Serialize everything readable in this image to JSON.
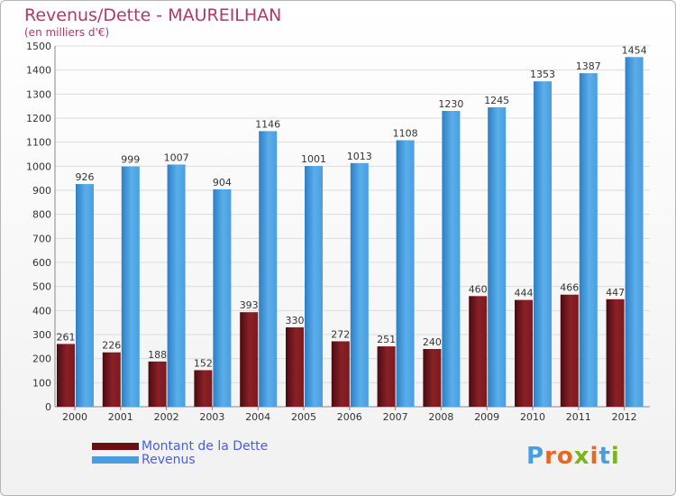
{
  "title": "Revenus/Dette - MAUREILHAN",
  "subtitle": "(en milliers d'€)",
  "colors": {
    "title": "#b1386a",
    "debt": "#7a1a1e",
    "revenue": "#4a9ee0",
    "legend_text": "#4a5fd8"
  },
  "logo": "Proxiti",
  "chart_data": {
    "type": "bar",
    "categories": [
      "2000",
      "2001",
      "2002",
      "2003",
      "2004",
      "2005",
      "2006",
      "2007",
      "2008",
      "2009",
      "2010",
      "2011",
      "2012"
    ],
    "series": [
      {
        "name": "Montant de la Dette",
        "values": [
          261,
          226,
          188,
          152,
          393,
          330,
          272,
          251,
          240,
          460,
          444,
          466,
          447
        ]
      },
      {
        "name": "Revenus",
        "values": [
          926,
          999,
          1007,
          904,
          1146,
          1001,
          1013,
          1108,
          1230,
          1245,
          1353,
          1387,
          1454
        ]
      }
    ],
    "ylim": [
      0,
      1500
    ],
    "yticks": [
      0,
      100,
      200,
      300,
      400,
      500,
      600,
      700,
      800,
      900,
      1000,
      1100,
      1200,
      1300,
      1400,
      1500
    ],
    "grid": true,
    "legend_position": "bottom-left"
  }
}
